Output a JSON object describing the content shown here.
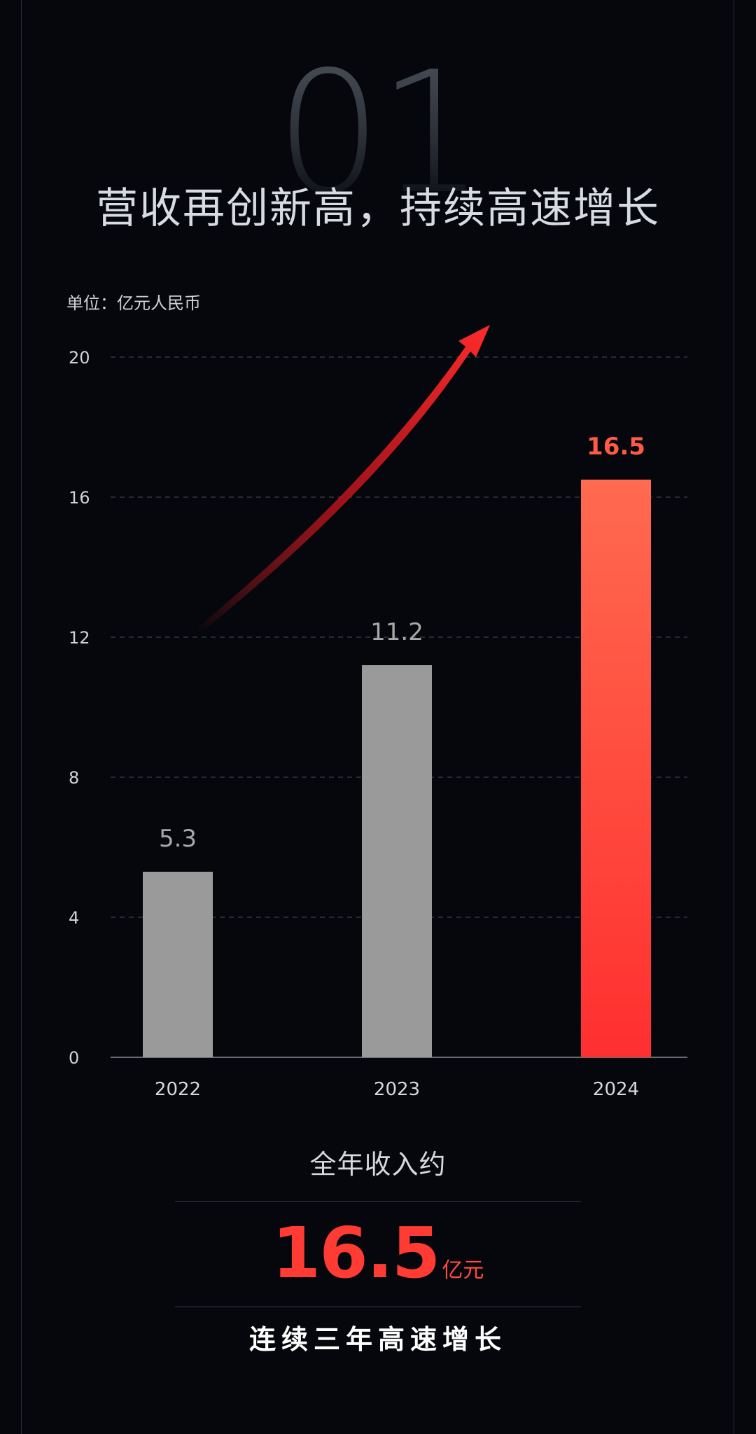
{
  "section": {
    "number": "01",
    "headline": "营收再创新高，持续高速增长"
  },
  "chart_data": {
    "type": "bar",
    "unit_label": "单位：亿元人民币",
    "categories": [
      "2022",
      "2023",
      "2024"
    ],
    "values": [
      5.3,
      11.2,
      16.5
    ],
    "data_labels": [
      "5.3",
      "11.2",
      "16.5"
    ],
    "ylim": [
      0,
      20
    ],
    "yticks": [
      "0",
      "4",
      "8",
      "12",
      "16",
      "20"
    ],
    "grid": true,
    "highlight_index": 2,
    "colors": {
      "bar": "#9a9a9a",
      "highlight_top": "#ff6a50",
      "highlight_bottom": "#ff2f2f",
      "label": "#a8a8a8",
      "highlight_label": "#ff5a45",
      "grid": "#3a3f48",
      "axis": "#8a8f98",
      "arrow": "#ff2b2b"
    }
  },
  "summary": {
    "label": "全年收入约",
    "value": "16.5",
    "unit": "亿元",
    "tagline": "连续三年高速增长"
  }
}
